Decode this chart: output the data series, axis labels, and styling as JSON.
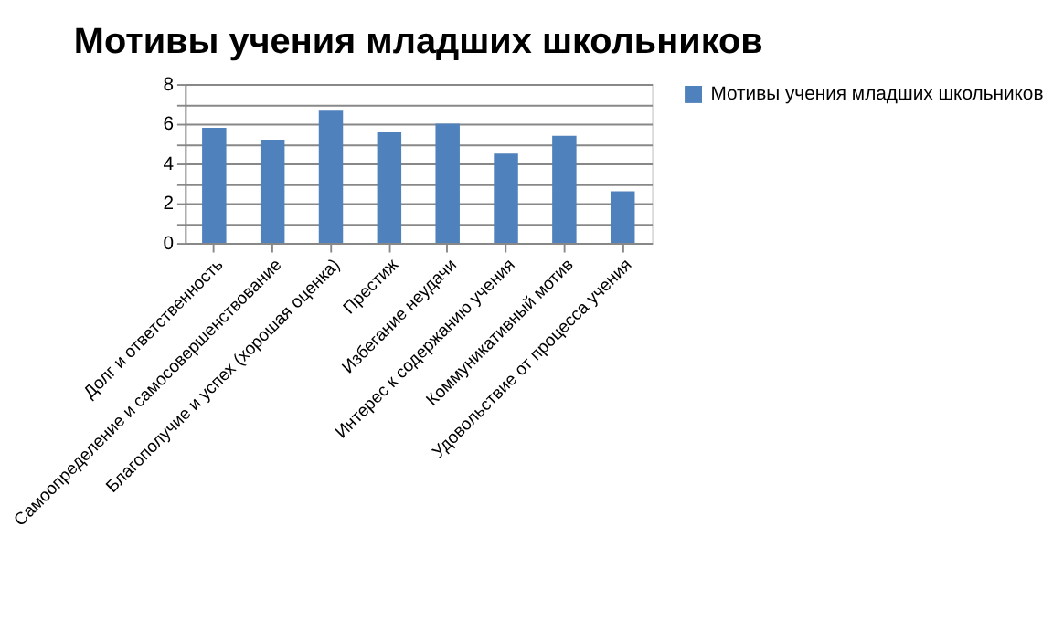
{
  "chart_data": {
    "type": "bar",
    "title": "Мотивы учения младших школьников",
    "categories": [
      "Долг и ответственность",
      "Самоопределение и самосовершенствование",
      "Благополучие и успех (хорошая оценка)",
      "Престиж",
      "Избегание неудачи",
      "Интерес к содержанию учения",
      "Коммуникативный мотив",
      "Удовольствие от процесса учения"
    ],
    "series": [
      {
        "name": "Мотивы учения младших школьников",
        "color": "#4f81bd",
        "values": [
          5.8,
          5.2,
          6.7,
          5.6,
          6.0,
          4.5,
          5.4,
          2.6
        ]
      }
    ],
    "ylim": [
      0,
      8
    ],
    "yticks": [
      0,
      {
        "value": 1,
        "label": null
      },
      2,
      {
        "value": 3,
        "label": null
      },
      4,
      {
        "value": 5,
        "label": null
      },
      6,
      {
        "value": 7,
        "label": null
      },
      8
    ],
    "grid": "y",
    "legend": "right"
  }
}
